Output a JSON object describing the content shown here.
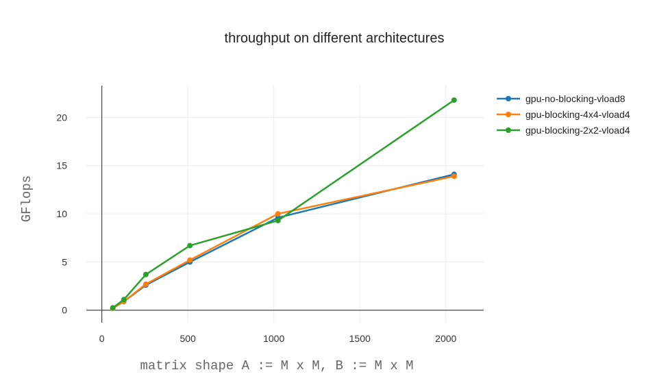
{
  "chart_data": {
    "type": "line",
    "title": "throughput on different architectures",
    "xlabel": "matrix shape A := M x M, B := M x M",
    "ylabel": "GFlops",
    "xlim": [
      -90,
      2220
    ],
    "ylim": [
      -1.3,
      23.3
    ],
    "x_ticks": [
      0,
      500,
      1000,
      1500,
      2000
    ],
    "y_ticks": [
      0,
      5,
      10,
      15,
      20
    ],
    "grid": true,
    "legend_position": "top-right",
    "series": [
      {
        "name": "gpu-no-blocking-vload8",
        "color": "#1f77b4",
        "points": [
          [
            64,
            0.2
          ],
          [
            128,
            0.9
          ],
          [
            256,
            2.6
          ],
          [
            512,
            5.0
          ],
          [
            1024,
            9.6
          ],
          [
            2048,
            14.1
          ]
        ]
      },
      {
        "name": "gpu-blocking-4x4-vload4",
        "color": "#ff7f0e",
        "points": [
          [
            64,
            0.2
          ],
          [
            128,
            0.9
          ],
          [
            256,
            2.7
          ],
          [
            512,
            5.2
          ],
          [
            1024,
            10.0
          ],
          [
            2048,
            13.9
          ]
        ]
      },
      {
        "name": "gpu-blocking-2x2-vload4",
        "color": "#2ca02c",
        "points": [
          [
            64,
            0.25
          ],
          [
            128,
            1.1
          ],
          [
            256,
            3.7
          ],
          [
            512,
            6.7
          ],
          [
            1024,
            9.3
          ],
          [
            2048,
            21.8
          ]
        ]
      }
    ]
  }
}
